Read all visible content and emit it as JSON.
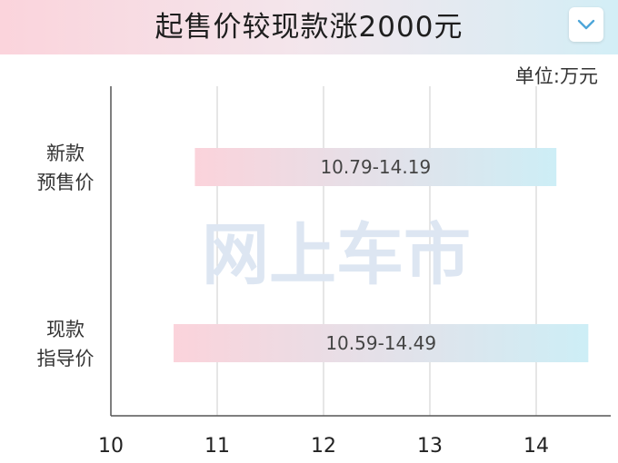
{
  "title": "起售价较现款涨2000元",
  "unit": "单位:万元",
  "watermark": "网上车市",
  "icons": {
    "dropdown": "chevron-down-icon"
  },
  "colors": {
    "bar_start": "#fbd3db",
    "bar_end": "#cdeef6",
    "dropdown": "#4ea6d9",
    "grid": "#d6d6d6",
    "axis": "#555555"
  },
  "chart_data": {
    "type": "bar",
    "orientation": "horizontal",
    "title": "起售价较现款涨2000元",
    "unit": "单位:万元",
    "categories": [
      {
        "lines": [
          "新款",
          "预售价"
        ],
        "low": 10.79,
        "high": 14.19,
        "label": "10.79-14.19"
      },
      {
        "lines": [
          "现款",
          "指导价"
        ],
        "low": 10.59,
        "high": 14.49,
        "label": "10.59-14.49"
      }
    ],
    "xlim": [
      10,
      14.5
    ],
    "xticks": [
      10,
      11,
      12,
      13,
      14
    ],
    "grid": true
  }
}
